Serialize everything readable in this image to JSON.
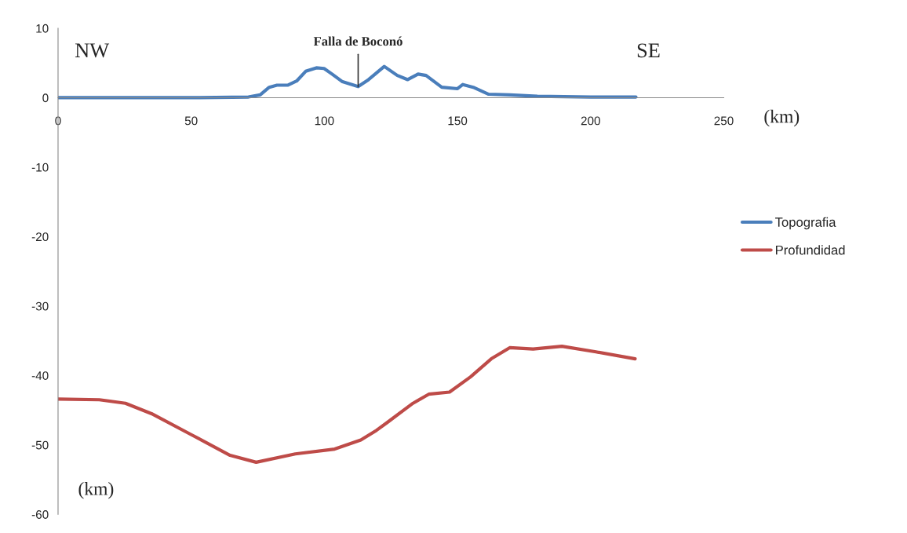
{
  "chart_data": {
    "type": "line",
    "xlabel": "(km)",
    "ylabel": "(km)",
    "xlim": [
      0,
      250
    ],
    "xticks": [
      0,
      50,
      100,
      150,
      200,
      250
    ],
    "ylim": [
      -60,
      10
    ],
    "yticks": [
      -60,
      -50,
      -40,
      -30,
      -20,
      -10,
      0,
      10
    ],
    "grid": false,
    "legend": "right",
    "marker": "none",
    "line_style": "solid",
    "annotations": [
      "NW",
      "SE",
      {
        "text": "Falla de Boconó",
        "x": 112.7,
        "y": 1.6
      }
    ],
    "series": [
      {
        "name": "Topografia",
        "color": "#4a7ebb",
        "x": [
          0,
          51.8,
          71.5,
          75.9,
          79.3,
          82.2,
          86.2,
          89.6,
          93.0,
          97.0,
          99.9,
          102.9,
          106.8,
          112.7,
          116.6,
          122.5,
          127.4,
          131.3,
          135.2,
          138.2,
          144.1,
          150.0,
          152.0,
          155.9,
          161.7,
          169.6,
          180,
          200,
          217
        ],
        "values": [
          0,
          0,
          0.1,
          0.4,
          1.5,
          1.8,
          1.8,
          2.4,
          3.8,
          4.3,
          4.2,
          3.4,
          2.3,
          1.6,
          2.6,
          4.5,
          3.2,
          2.6,
          3.4,
          3.2,
          1.5,
          1.3,
          1.9,
          1.5,
          0.5,
          0.4,
          0.2,
          0.1,
          0.1
        ]
      },
      {
        "name": "Profundidad",
        "color": "#be4b48",
        "x": [
          0,
          15.5,
          25.3,
          35.1,
          49.9,
          64.6,
          74.4,
          89.1,
          103.9,
          113.7,
          119.6,
          123.5,
          133.3,
          139.2,
          147.0,
          154.9,
          162.7,
          169.6,
          178.4,
          189.2,
          202.0,
          216.7
        ],
        "values": [
          -43.4,
          -43.5,
          -44.0,
          -45.5,
          -48.5,
          -51.5,
          -52.5,
          -51.3,
          -50.6,
          -49.3,
          -47.9,
          -46.8,
          -44.0,
          -42.7,
          -42.4,
          -40.2,
          -37.6,
          -36.0,
          -36.2,
          -35.8,
          -36.6,
          -37.6
        ]
      }
    ]
  }
}
